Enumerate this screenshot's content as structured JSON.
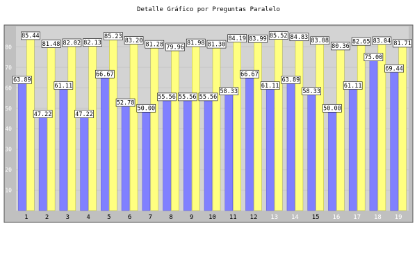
{
  "chart_data": {
    "type": "bar",
    "title": "Detalle Gráfico por Preguntas Paralelo",
    "xlabel": "",
    "ylabel": "",
    "ylim": [
      0,
      90
    ],
    "yticks": [
      10,
      20,
      30,
      40,
      50,
      60,
      70,
      80
    ],
    "grid": true,
    "categories": [
      "1",
      "2",
      "3",
      "4",
      "5",
      "6",
      "7",
      "8",
      "9",
      "10",
      "11",
      "12",
      "13",
      "14",
      "15",
      "16",
      "17",
      "18",
      "19"
    ],
    "series": [
      {
        "color": "#8080ff",
        "values": [
          63.89,
          47.22,
          61.11,
          47.22,
          66.67,
          52.78,
          50.0,
          55.56,
          55.56,
          55.56,
          58.33,
          66.67,
          61.11,
          63.89,
          58.33,
          50.0,
          61.11,
          75.0,
          69.44
        ],
        "labels": [
          "63.89",
          "47.22",
          "61.11",
          "47.22",
          "66.67",
          "52.78",
          "50.00",
          "55.56",
          "55.56",
          "55.56",
          "58.33",
          "66.67",
          "61.11",
          "63.89",
          "58.33",
          "50.00",
          "61.11",
          "75.00",
          "69.44"
        ]
      },
      {
        "color": "#ffff80",
        "values": [
          85.44,
          81.48,
          82.02,
          82.13,
          85.23,
          83.2,
          81.28,
          79.96,
          81.98,
          81.3,
          84.19,
          83.99,
          85.52,
          84.83,
          83.08,
          80.36,
          82.65,
          83.04,
          81.71
        ],
        "labels": [
          "85.44",
          "81.48",
          "82.02",
          "82.13",
          "85.23",
          "83.20",
          "81.28",
          "79.96",
          "81.98",
          "81.30",
          "84.19",
          "83.99",
          "85.52",
          "84.83",
          "83.08",
          "80.36",
          "82.65",
          "83.04",
          "81.71"
        ]
      }
    ],
    "tick_label_colors": [
      "#000000",
      "#000000",
      "#000000",
      "#000000",
      "#000000",
      "#000000",
      "#000000",
      "#000000",
      "#000000",
      "#000000",
      "#000000",
      "#000000",
      "#ffffff",
      "#ffffff",
      "#000000",
      "#ffffff",
      "#ffffff",
      "#ffffff",
      "#ffffff"
    ],
    "plot_bg": "#d3d3d3",
    "frame_bg": "#c0c0c0"
  }
}
